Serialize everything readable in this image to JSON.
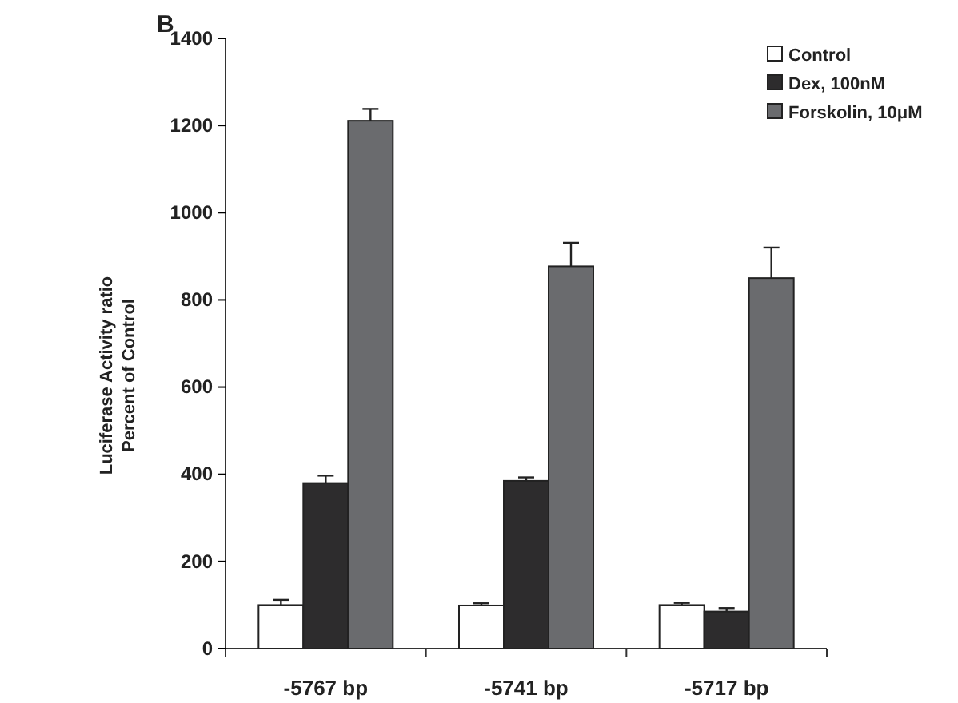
{
  "chart_data": {
    "type": "bar",
    "title": "B",
    "ylabel": "Luciferase Activity ratio\nPercent of Control",
    "categories": [
      "-5767 bp",
      "-5741 bp",
      "-5717 bp"
    ],
    "series": [
      {
        "name": "Control",
        "color": "#ffffff",
        "values": [
          100,
          99,
          100
        ],
        "errors": [
          12,
          5,
          5
        ]
      },
      {
        "name": "Dex, 100nM",
        "color": "#2d2c2d",
        "values": [
          380,
          385,
          85
        ],
        "errors": [
          17,
          8,
          8
        ]
      },
      {
        "name": "Forskolin, 10μM",
        "color": "#6a6b6e",
        "values": [
          1211,
          877,
          850
        ],
        "errors": [
          27,
          54,
          70
        ]
      }
    ],
    "ylim": [
      0,
      1400
    ],
    "yticks": [
      0,
      200,
      400,
      600,
      800,
      1000,
      1200,
      1400
    ],
    "grid": false,
    "legend": "top right"
  }
}
